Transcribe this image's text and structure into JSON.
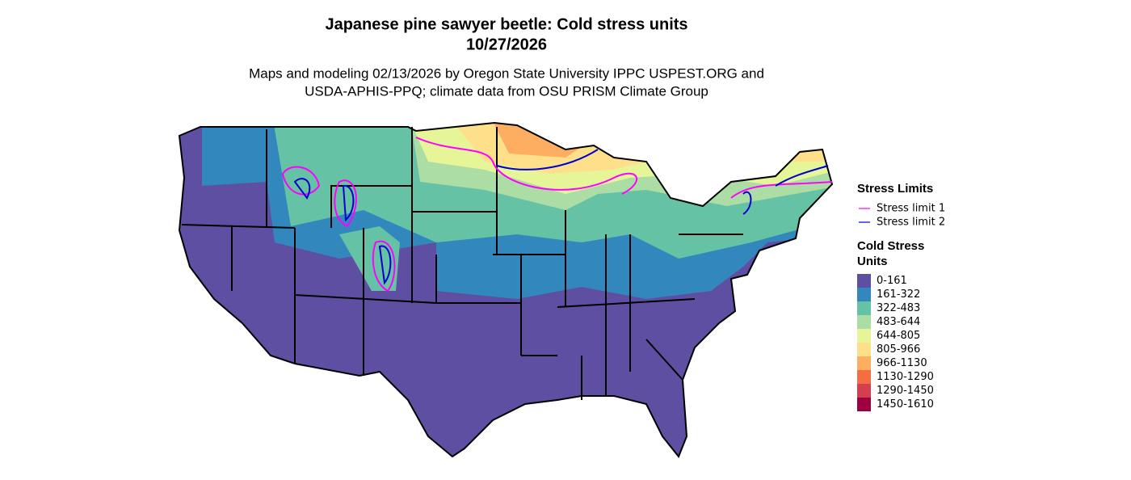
{
  "title": "Japanese pine sawyer beetle: Cold stress units",
  "date": "10/27/2026",
  "subtitle_lines": [
    "Maps and modeling 02/13/2026 by Oregon State University IPPC USPEST.ORG and",
    "USDA-APHIS-PPQ; climate data from OSU PRISM Climate Group"
  ],
  "stress_limits": {
    "title": "Stress Limits",
    "items": [
      {
        "label": "Stress limit 1",
        "color": "#ff00ff"
      },
      {
        "label": "Stress limit 2",
        "color": "#0000cd"
      }
    ]
  },
  "cold_stress": {
    "title_lines": [
      "Cold Stress",
      "Units"
    ],
    "items": [
      {
        "label": "0-161",
        "color": "#5e4fa2"
      },
      {
        "label": "161-322",
        "color": "#3288bd"
      },
      {
        "label": "322-483",
        "color": "#66c2a5"
      },
      {
        "label": "483-644",
        "color": "#abdda4"
      },
      {
        "label": "644-805",
        "color": "#e6f598"
      },
      {
        "label": "805-966",
        "color": "#fee08b"
      },
      {
        "label": "966-1130",
        "color": "#fdae61"
      },
      {
        "label": "1130-1290",
        "color": "#f46d43"
      },
      {
        "label": "1290-1450",
        "color": "#d53e4f"
      },
      {
        "label": "1450-1610",
        "color": "#9e0142"
      }
    ]
  }
}
